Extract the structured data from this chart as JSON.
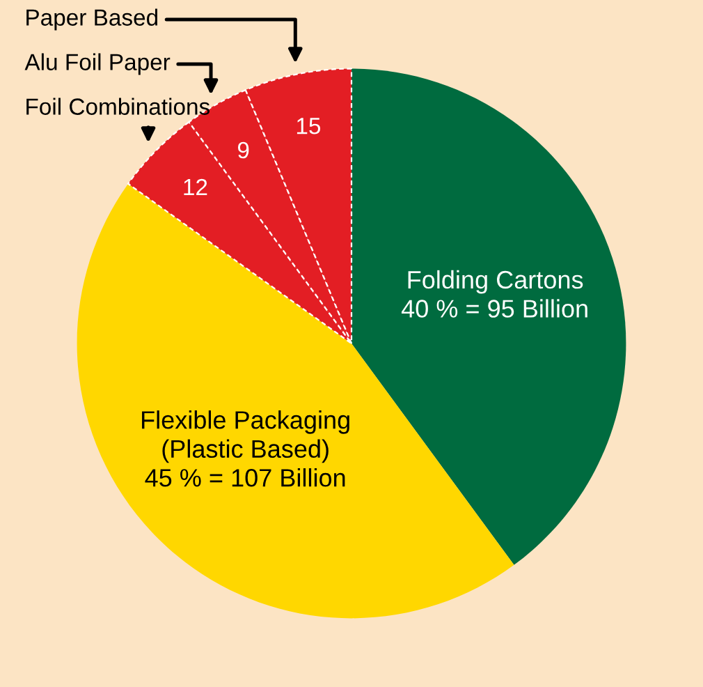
{
  "chart_data": {
    "type": "pie",
    "categories": [
      "Folding Cartons",
      "Flexible Packaging\n(Plastic Based)",
      "Foil Combinations",
      "Alu Foil Paper",
      "Paper Based"
    ],
    "values": [
      95,
      107,
      12,
      9,
      15
    ],
    "colors": [
      "#006b3f",
      "#ffd700",
      "#e31e24",
      "#e31e24",
      "#e31e24"
    ],
    "value_labels": [
      "40 % = 95 Billion",
      "45 % = 107 Billion",
      "12",
      "9",
      "15"
    ]
  }
}
